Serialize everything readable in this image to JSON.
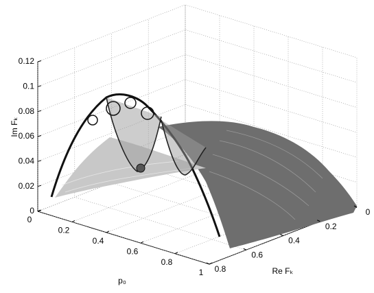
{
  "chart_data": {
    "type": "surface",
    "xlabel": "p₀",
    "ylabel": "Re Fₖ",
    "zlabel": "Im Fₖ",
    "xlim": [
      0,
      1
    ],
    "xticks": [
      0,
      0.2,
      0.4,
      0.6,
      0.8,
      1
    ],
    "ylim": [
      0,
      0.8
    ],
    "yticks": [
      0,
      0.2,
      0.4,
      0.6,
      0.8
    ],
    "zlim": [
      0,
      0.12
    ],
    "zticks": [
      0,
      0.02,
      0.04,
      0.06,
      0.08,
      0.1,
      0.12
    ],
    "grid": true
  }
}
